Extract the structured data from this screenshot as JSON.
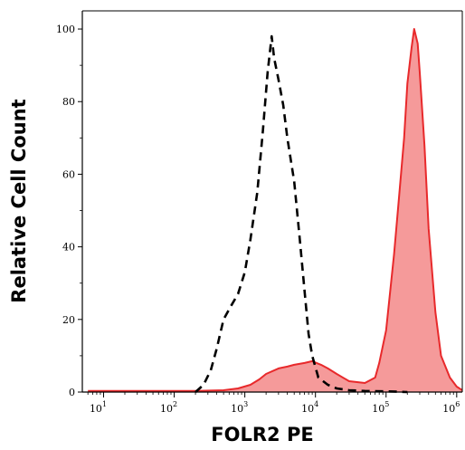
{
  "chart_data": {
    "type": "area",
    "xlabel": "FOLR2 PE",
    "ylabel": "Relative Cell Count",
    "x_scale": "log",
    "xlim": [
      5,
      1200000
    ],
    "ylim": [
      0,
      105
    ],
    "x_ticks": [
      {
        "value": 10,
        "base": "10",
        "exp": "1"
      },
      {
        "value": 100,
        "base": "10",
        "exp": "2"
      },
      {
        "value": 1000,
        "base": "10",
        "exp": "3"
      },
      {
        "value": 10000,
        "base": "10",
        "exp": "4"
      },
      {
        "value": 100000,
        "base": "10",
        "exp": "5"
      },
      {
        "value": 1000000,
        "base": "10",
        "exp": "6"
      }
    ],
    "y_ticks": [
      0,
      20,
      40,
      60,
      80,
      100
    ],
    "grid": false,
    "series": [
      {
        "style": "dashed-outline",
        "color": "#000000",
        "x": [
          200,
          260,
          330,
          400,
          500,
          650,
          800,
          1000,
          1200,
          1500,
          1800,
          2100,
          2400,
          2600,
          3000,
          3500,
          4000,
          5000,
          6000,
          7000,
          8000,
          9000,
          11000,
          15000,
          20000,
          30000,
          50000,
          100000,
          200000
        ],
        "y": [
          0,
          2,
          6,
          12,
          20,
          24,
          27,
          33,
          42,
          55,
          72,
          88,
          98,
          92,
          86,
          79,
          70,
          58,
          42,
          28,
          16,
          10,
          4,
          2,
          1,
          0.5,
          0.3,
          0.2,
          0
        ]
      },
      {
        "style": "filled",
        "color": "#e8292b",
        "fill": "#f59a9a",
        "x": [
          6,
          10,
          50,
          200,
          500,
          800,
          1200,
          1600,
          2000,
          3000,
          4000,
          5000,
          7000,
          9000,
          12000,
          15000,
          20000,
          30000,
          50000,
          70000,
          80000,
          100000,
          130000,
          150000,
          180000,
          200000,
          230000,
          250000,
          280000,
          300000,
          350000,
          400000,
          500000,
          600000,
          800000,
          1000000,
          1200000
        ],
        "y": [
          0.3,
          0.3,
          0.3,
          0.3,
          0.5,
          1,
          2,
          3.5,
          5,
          6.5,
          7,
          7.5,
          8,
          8.5,
          7.5,
          6.5,
          5,
          3,
          2.5,
          4,
          8,
          17,
          38,
          52,
          70,
          85,
          95,
          100,
          96,
          88,
          68,
          45,
          22,
          10,
          4,
          1.5,
          0.5
        ]
      }
    ]
  }
}
